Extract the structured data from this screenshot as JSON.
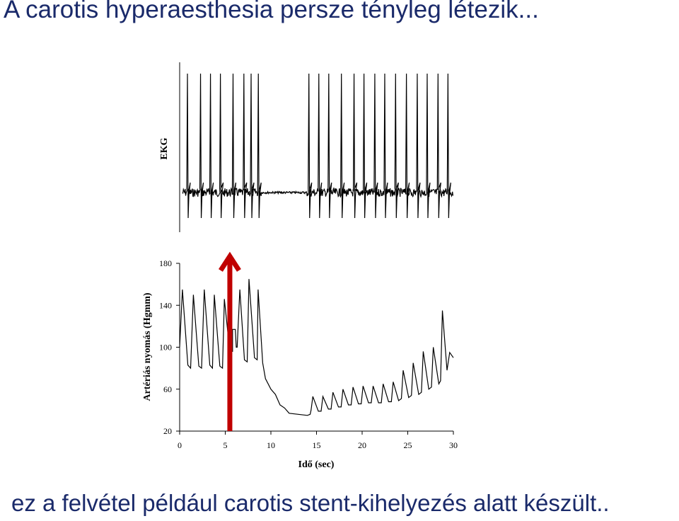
{
  "slide": {
    "title": "A carotis hyperaesthesia persze tényleg létezik...",
    "caption": "ez a felvétel például carotis stent-kihelyezés alatt készült.."
  },
  "chart_data": [
    {
      "type": "line",
      "ylabel": "EKG",
      "x_range": [
        0,
        30
      ],
      "grid": false,
      "beats_sec": [
        0.55,
        2.0,
        3.1,
        4.2,
        5.6,
        6.8,
        7.6,
        8.4,
        14.0,
        15.1,
        16.2,
        17.6,
        19.0,
        20.1,
        21.3,
        22.4,
        23.6,
        24.8,
        26.0,
        27.1,
        28.3,
        29.4
      ],
      "flat_interval_sec": [
        8.7,
        13.8
      ]
    },
    {
      "type": "line",
      "ylabel": "Artériás nyomás (Hgmm)",
      "xlabel": "Idő (sec)",
      "xlim": [
        0,
        30
      ],
      "ylim": [
        20,
        180
      ],
      "xticks": [
        0,
        5,
        10,
        15,
        20,
        25,
        30
      ],
      "yticks": [
        20,
        60,
        100,
        140,
        180
      ],
      "grid": false,
      "series": [
        {
          "values": [
            [
              0,
              100
            ],
            [
              0.3,
              155
            ],
            [
              0.9,
              83
            ],
            [
              1.2,
              80
            ],
            [
              1.5,
              150
            ],
            [
              2.1,
              82
            ],
            [
              2.4,
              80
            ],
            [
              2.7,
              155
            ],
            [
              3.3,
              83
            ],
            [
              3.6,
              80
            ],
            [
              3.8,
              150
            ],
            [
              4.4,
              82
            ],
            [
              4.7,
              80
            ],
            [
              4.9,
              146
            ],
            [
              5.5,
              96
            ],
            [
              5.8,
              96
            ],
            [
              5.8,
              117
            ],
            [
              6.1,
              117
            ],
            [
              6.2,
              100
            ],
            [
              6.3,
              100
            ],
            [
              6.6,
              155
            ],
            [
              7.1,
              88
            ],
            [
              7.4,
              86
            ],
            [
              7.6,
              165
            ],
            [
              8.2,
              90
            ],
            [
              8.5,
              88
            ],
            [
              8.6,
              155
            ],
            [
              9.1,
              85
            ],
            [
              9.4,
              70
            ],
            [
              10.0,
              60
            ],
            [
              10.5,
              55
            ],
            [
              11.0,
              45
            ],
            [
              11.5,
              42
            ],
            [
              12.0,
              37
            ],
            [
              13.0,
              36
            ],
            [
              14.0,
              35
            ],
            [
              14.3,
              36
            ],
            [
              14.4,
              40
            ],
            [
              14.6,
              53
            ],
            [
              15.2,
              39
            ],
            [
              15.5,
              39
            ],
            [
              15.7,
              53
            ],
            [
              16.3,
              41
            ],
            [
              16.6,
              41
            ],
            [
              16.8,
              57
            ],
            [
              17.4,
              43
            ],
            [
              17.7,
              43
            ],
            [
              17.9,
              60
            ],
            [
              18.5,
              45
            ],
            [
              18.8,
              45
            ],
            [
              19.0,
              62
            ],
            [
              19.6,
              46
            ],
            [
              19.9,
              46
            ],
            [
              20.1,
              63
            ],
            [
              20.7,
              47
            ],
            [
              21.0,
              47
            ],
            [
              21.2,
              63
            ],
            [
              21.8,
              47
            ],
            [
              22.1,
              47
            ],
            [
              22.3,
              65
            ],
            [
              22.9,
              48
            ],
            [
              23.2,
              48
            ],
            [
              23.4,
              67
            ],
            [
              24.0,
              49
            ],
            [
              24.3,
              51
            ],
            [
              24.5,
              78
            ],
            [
              25.1,
              52
            ],
            [
              25.4,
              54
            ],
            [
              25.6,
              85
            ],
            [
              26.2,
              55
            ],
            [
              26.5,
              57
            ],
            [
              26.7,
              96
            ],
            [
              27.3,
              60
            ],
            [
              27.6,
              62
            ],
            [
              27.8,
              100
            ],
            [
              28.4,
              65
            ],
            [
              28.6,
              68
            ],
            [
              28.8,
              135
            ],
            [
              29.3,
              78
            ],
            [
              29.6,
              95
            ],
            [
              30.0,
              90
            ]
          ]
        }
      ],
      "annotations": [
        {
          "type": "arrow",
          "x": 5.5,
          "from_y": 20,
          "to_y": 180,
          "color": "#c00000"
        }
      ]
    }
  ]
}
